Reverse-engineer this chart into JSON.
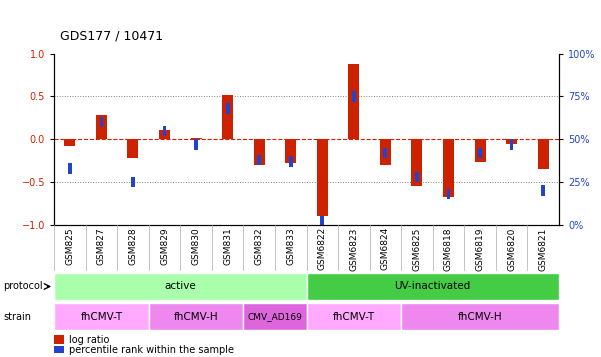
{
  "title": "GDS177 / 10471",
  "samples": [
    "GSM825",
    "GSM827",
    "GSM828",
    "GSM829",
    "GSM830",
    "GSM831",
    "GSM832",
    "GSM833",
    "GSM6822",
    "GSM6823",
    "GSM6824",
    "GSM6825",
    "GSM6818",
    "GSM6819",
    "GSM6820",
    "GSM6821"
  ],
  "log_ratio": [
    -0.08,
    0.28,
    -0.22,
    0.11,
    0.02,
    0.52,
    -0.3,
    -0.28,
    -0.9,
    0.88,
    -0.3,
    -0.55,
    -0.68,
    -0.26,
    -0.05,
    -0.35
  ],
  "pct_rank": [
    33,
    60,
    25,
    55,
    47,
    68,
    38,
    37,
    2,
    75,
    42,
    28,
    18,
    42,
    47,
    20
  ],
  "protocol_groups": [
    {
      "label": "active",
      "start": 0,
      "end": 8,
      "color": "#aaffaa"
    },
    {
      "label": "UV-inactivated",
      "start": 8,
      "end": 16,
      "color": "#44cc44"
    }
  ],
  "strain_groups": [
    {
      "label": "fhCMV-T",
      "start": 0,
      "end": 3,
      "color": "#ffaaff"
    },
    {
      "label": "fhCMV-H",
      "start": 3,
      "end": 6,
      "color": "#ee88ee"
    },
    {
      "label": "CMV_AD169",
      "start": 6,
      "end": 8,
      "color": "#dd66dd"
    },
    {
      "label": "fhCMV-T",
      "start": 8,
      "end": 11,
      "color": "#ffaaff"
    },
    {
      "label": "fhCMV-H",
      "start": 11,
      "end": 16,
      "color": "#ee88ee"
    }
  ],
  "bar_color_red": "#cc2200",
  "bar_color_blue": "#2244cc",
  "ylim": [
    -1.0,
    1.0
  ],
  "right_ylim": [
    0,
    100
  ],
  "right_yticks": [
    0,
    25,
    50,
    75,
    100
  ],
  "right_yticklabels": [
    "0%",
    "25%",
    "50%",
    "75%",
    "100%"
  ],
  "left_yticks": [
    -1.0,
    -0.5,
    0.0,
    0.5,
    1.0
  ],
  "hline_y": 0.0,
  "dotted_lines": [
    -0.5,
    0.5
  ],
  "legend_red": "log ratio",
  "legend_blue": "percentile rank within the sample",
  "protocol_label": "protocol",
  "strain_label": "strain"
}
